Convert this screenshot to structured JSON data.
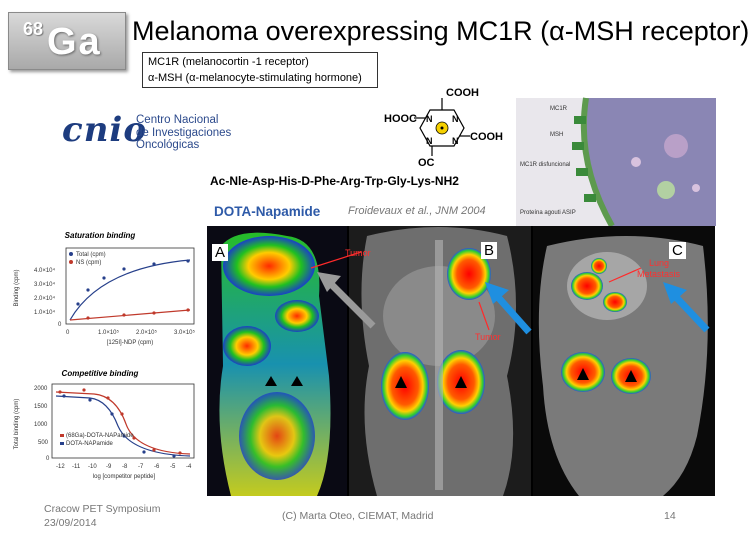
{
  "logo": {
    "superscript": "68",
    "element": "Ga"
  },
  "title": "Melanoma overexpressing MC1R (α-MSH receptor)",
  "definitions": [
    "MC1R (melanocortin -1 receptor)",
    "α-MSH (α-melanocyte-stimulating hormone)"
  ],
  "cnio": {
    "word": "cnio",
    "name_lines": [
      "Centro Nacional",
      "de Investigaciones",
      "Oncológicas"
    ]
  },
  "chelator": {
    "cooh_top": "COOH",
    "hooc": "HOOC",
    "cooh_right": "COOH",
    "oc": "OC"
  },
  "peptide": "Ac-Nle-Asp-His-D-Phe-Arg-Trp-Gly-Lys-NH2",
  "dota_name": "DOTA-Napamide",
  "dota_ref": "Froidevaux et al., JNM 2004",
  "diagram": {
    "labels": [
      "MC1R",
      "MSH",
      "MC1R disfuncional",
      "Proteína agouti ASIP"
    ]
  },
  "charts": {
    "saturation": {
      "title": "Saturation binding",
      "legend": [
        "Total (cpm)",
        "NS (cpm)"
      ],
      "xlabel": "[125I]-NDP (cpm)",
      "ylabel": "Binding (cpm)",
      "yticks": [
        "4.0×10⁴",
        "3.0×10⁴",
        "2.0×10⁴",
        "1.0×10⁴",
        "0"
      ],
      "xticks": [
        "0",
        "1.0×10⁵",
        "2.0×10⁵",
        "3.0×10⁵"
      ]
    },
    "competitive": {
      "title": "Competitive binding",
      "legend": [
        "(68Ga)-DOTA-NAPamide",
        "DOTA-NAPamide"
      ],
      "xlabel": "log [competitor peptide]",
      "ylabel": "Total binding (cpm)",
      "yticks": [
        "2000",
        "1500",
        "1000",
        "500",
        "0"
      ],
      "xticks": [
        "-12",
        "-11",
        "-10",
        "-9",
        "-8",
        "-7",
        "-6",
        "-5",
        "-4"
      ]
    }
  },
  "panels": {
    "a": {
      "label": "A"
    },
    "b": {
      "label": "B",
      "tumor_top": "Tumor",
      "tumor_bottom": "Tumor"
    },
    "c": {
      "label": "C",
      "lung_line1": "Lung",
      "lung_line2": "Metastasis"
    }
  },
  "footer": {
    "left_line1": "Cracow PET Symposium",
    "left_line2": "23/09/2014",
    "middle": "(C) Marta Oteo, CIEMAT, Madrid",
    "page": "14"
  },
  "colors": {
    "cnio_blue": "#1d3c7f",
    "dota_blue": "#2e5aa8",
    "arrow_blue": "#1f8fe0"
  }
}
